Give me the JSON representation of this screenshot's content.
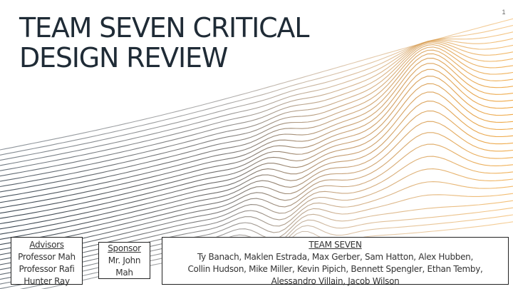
{
  "slide": {
    "page_number": "1",
    "title_lines": [
      "TEAM SEVEN CRITICAL",
      "DESIGN REVIEW"
    ]
  },
  "advisors": {
    "heading": "Advisors",
    "names": [
      "Professor Mah",
      "Professor Rafi",
      "Hunter Ray"
    ]
  },
  "sponsor": {
    "heading": "Sponsor",
    "lines": [
      "Mr. John",
      "Mah"
    ]
  },
  "team": {
    "heading": "TEAM SEVEN",
    "lines": [
      "Ty Banach, Maklen Estrada, Max Gerber, Sam Hatton, Alex Hubben,",
      "Collin Hudson, Mike Miller, Kevin Pipich, Bennett Spengler, Ethan Temby,",
      "Alessandro Villain, Jacob Wilson"
    ]
  },
  "theme": {
    "title_color": "#1f2b36",
    "wave_color_left": "#2f3c48",
    "wave_color_mid": "#a89a8c",
    "wave_color_right": "#f0a43a"
  }
}
